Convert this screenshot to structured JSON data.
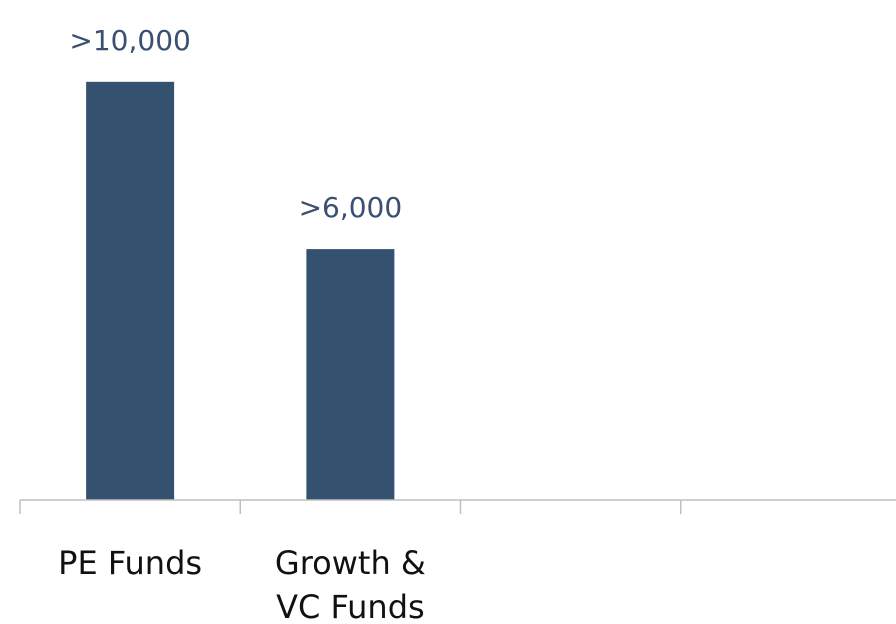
{
  "chart_data": {
    "type": "bar",
    "categories": [
      [
        "PE Funds"
      ],
      [
        "Growth &",
        "VC Funds"
      ],
      [
        ""
      ],
      [
        ""
      ]
    ],
    "values": [
      10000,
      6000,
      null,
      null
    ],
    "data_labels": [
      ">10,000",
      ">6,000",
      "",
      ""
    ],
    "title": "",
    "xlabel": "",
    "ylabel": "",
    "ylim": [
      0,
      11000
    ],
    "grid": false,
    "legend": "none",
    "bar_color": "#34526f",
    "label_color": "#3a5070"
  }
}
